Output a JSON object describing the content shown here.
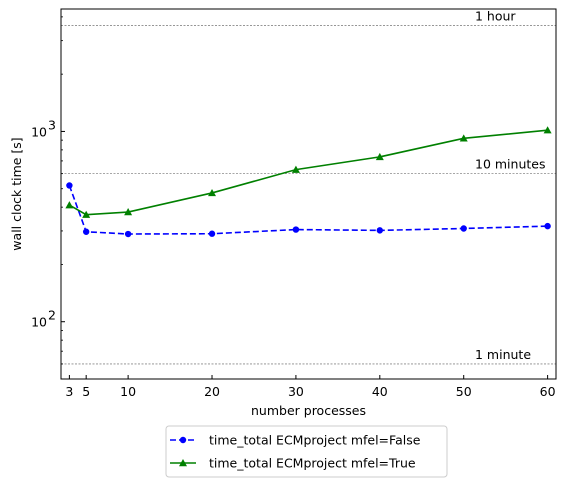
{
  "chart_data": {
    "type": "line",
    "xlabel": "number processes",
    "ylabel": "wall clock time [s]",
    "xlim": [
      2.0,
      61.0
    ],
    "ylim": [
      50,
      4400
    ],
    "yscale": "log",
    "x_ticks": [
      3,
      5,
      10,
      20,
      30,
      40,
      50,
      60
    ],
    "y_ticks": [
      {
        "value": 100,
        "base": "10",
        "exp": "2"
      },
      {
        "value": 1000,
        "base": "10",
        "exp": "3"
      }
    ],
    "grid": false,
    "legend_position": "below",
    "x": [
      3,
      5,
      10,
      20,
      30,
      40,
      50,
      60
    ],
    "series": [
      {
        "name": "time_total ECMproject mfel=False",
        "color": "#0000ff",
        "marker": "circle",
        "linestyle": "dashed",
        "values": [
          520,
          297,
          289,
          290,
          305,
          302,
          309,
          318
        ]
      },
      {
        "name": "time_total ECMproject mfel=True",
        "color": "#008000",
        "marker": "triangle",
        "linestyle": "solid",
        "values": [
          410,
          365,
          377,
          475,
          630,
          735,
          920,
          1015
        ]
      }
    ],
    "reference_lines": [
      {
        "value": 3600,
        "label": "1 hour"
      },
      {
        "value": 600,
        "label": "10 minutes"
      },
      {
        "value": 60,
        "label": "1 minute"
      }
    ]
  }
}
